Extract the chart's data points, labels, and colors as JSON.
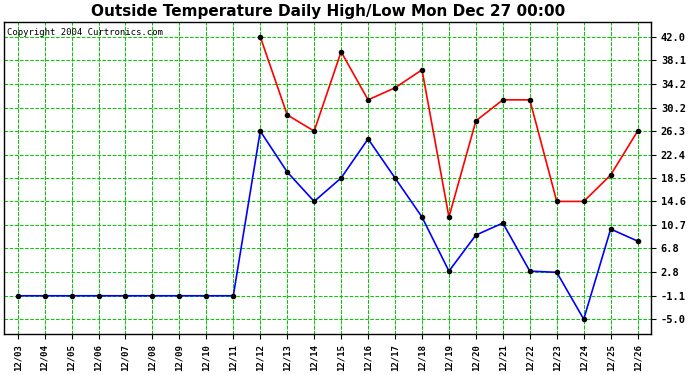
{
  "title": "Outside Temperature Daily High/Low Mon Dec 27 00:00",
  "copyright": "Copyright 2004 Curtronics.com",
  "x_labels": [
    "12/03",
    "12/04",
    "12/05",
    "12/06",
    "12/07",
    "12/08",
    "12/09",
    "12/10",
    "12/11",
    "12/12",
    "12/13",
    "12/14",
    "12/15",
    "12/16",
    "12/17",
    "12/18",
    "12/19",
    "12/20",
    "12/21",
    "12/22",
    "12/23",
    "12/24",
    "12/25",
    "12/26"
  ],
  "high_values": [
    null,
    null,
    null,
    null,
    null,
    null,
    null,
    null,
    null,
    42.0,
    29.0,
    26.3,
    39.5,
    31.5,
    33.5,
    36.5,
    12.0,
    28.0,
    31.5,
    31.5,
    14.6,
    14.6,
    19.0,
    26.3
  ],
  "low_values": [
    -1.1,
    -1.1,
    -1.1,
    -1.1,
    -1.1,
    -1.1,
    -1.1,
    -1.1,
    -1.1,
    26.3,
    19.5,
    14.6,
    18.5,
    25.0,
    18.5,
    12.0,
    3.0,
    9.0,
    11.0,
    3.0,
    2.8,
    -5.0,
    10.0,
    8.0
  ],
  "high_color": "#ff0000",
  "low_color": "#0000ff",
  "marker_color": "#000000",
  "grid_color": "#00cc00",
  "background_color": "#ffffff",
  "border_color": "#000000",
  "title_fontsize": 11,
  "copyright_fontsize": 6.5,
  "ytick_fontsize": 7.5,
  "xtick_fontsize": 6.5,
  "yticks": [
    -5.0,
    -1.1,
    2.8,
    6.8,
    10.7,
    14.6,
    18.5,
    22.4,
    26.3,
    30.2,
    34.2,
    38.1,
    42.0
  ],
  "ylim": [
    -7.5,
    44.5
  ],
  "line_width": 1.2,
  "marker_size": 3
}
